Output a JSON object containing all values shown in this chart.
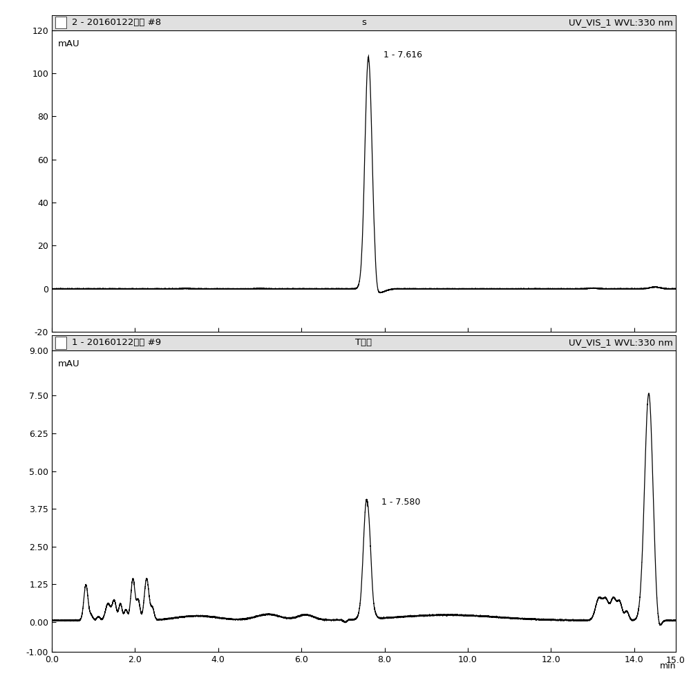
{
  "top_panel": {
    "header_left": "2 - 20160122黄芯 #8",
    "header_center": "s",
    "header_right": "UV_VIS_1 WVL:330 nm",
    "ylabel": "mAU",
    "ylim": [
      -20,
      120
    ],
    "yticks": [
      -20,
      0,
      20,
      40,
      60,
      80,
      100,
      120
    ],
    "peak_label": "1 - 7.616",
    "peak_x": 7.616,
    "peak_y": 105.5
  },
  "bottom_panel": {
    "header_left": "1 - 20160122黄芯 #9",
    "header_center": "T卷柏",
    "header_right": "UV_VIS_1 WVL:330 nm",
    "ylabel": "mAU",
    "ylim": [
      -1.0,
      9.0
    ],
    "yticks": [
      -1.0,
      0.0,
      1.25,
      2.5,
      3.75,
      5.0,
      6.25,
      7.5,
      9.0
    ],
    "ytick_labels": [
      "-1.00",
      "0.00",
      "1.25",
      "2.50",
      "3.75",
      "5.00",
      "6.25",
      "7.50",
      "9.00"
    ],
    "peak_label": "1 - 7.580",
    "peak_x": 7.58,
    "peak_y": 3.85
  },
  "xlim": [
    0.0,
    15.0
  ],
  "xticks": [
    0.0,
    2.0,
    4.0,
    6.0,
    8.0,
    10.0,
    12.0,
    14.0
  ],
  "xticklabels": [
    "0.0",
    "2.0",
    "4.0",
    "6.0",
    "8.0",
    "10.0",
    "12.0",
    "14.0"
  ],
  "line_color": "#000000",
  "background_color": "#ffffff",
  "header_bg": "#e0e0e0",
  "border_color": "#000000",
  "font_size": 9.5,
  "tick_font_size": 9.0
}
